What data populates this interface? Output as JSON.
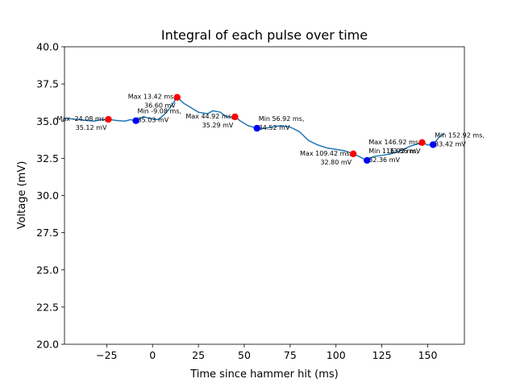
{
  "chart_data": {
    "type": "line",
    "title": "Integral of each pulse over time",
    "xlabel": "Time since hammer hit (ms)",
    "ylabel": "Voltage (mV)",
    "xlim": [
      -48,
      170
    ],
    "ylim": [
      20.0,
      40.0
    ],
    "xticks": [
      -25,
      0,
      25,
      50,
      75,
      100,
      125,
      150
    ],
    "yticks": [
      20.0,
      22.5,
      25.0,
      27.5,
      30.0,
      32.5,
      35.0,
      37.5,
      40.0
    ],
    "grid": false,
    "colors": {
      "line": "#1f77b4",
      "max": "#ff0000",
      "min": "#0000ff"
    },
    "series": [
      {
        "x": [
          -48,
          -40,
          -32,
          -28,
          -24.08,
          -20,
          -15,
          -12,
          -9.08,
          -5,
          -2,
          0,
          3,
          6,
          9,
          13.42,
          17,
          21,
          25,
          30,
          33,
          37,
          40,
          44.92,
          48,
          52,
          56.92,
          60,
          65,
          70,
          75,
          80,
          85,
          90,
          95,
          100,
          105,
          109.42,
          113,
          116.92,
          120,
          125,
          130,
          135,
          140,
          146.92,
          150,
          152.92,
          156,
          159
        ],
        "y": [
          35.2,
          35.1,
          35.0,
          35.1,
          35.12,
          35.05,
          35.0,
          35.1,
          35.03,
          35.3,
          35.2,
          35.15,
          35.1,
          35.4,
          35.8,
          36.6,
          36.2,
          35.9,
          35.6,
          35.5,
          35.7,
          35.6,
          35.3,
          35.29,
          35.0,
          34.7,
          34.52,
          34.5,
          34.6,
          34.7,
          34.6,
          34.3,
          33.7,
          33.4,
          33.2,
          33.1,
          33.0,
          32.8,
          32.6,
          32.36,
          32.6,
          32.7,
          32.8,
          33.0,
          33.3,
          33.56,
          33.4,
          33.42,
          33.9,
          34.2
        ]
      }
    ],
    "extrema": [
      {
        "kind": "max",
        "x": -24.08,
        "y": 35.12,
        "label": "Max -24.08 ms,\n35.12 mV"
      },
      {
        "kind": "min",
        "x": -9.08,
        "y": 35.03,
        "label": "Min -9.08 ms,\n35.03 mV"
      },
      {
        "kind": "max",
        "x": 13.42,
        "y": 36.6,
        "label": "Max 13.42 ms,\n36.60 mV"
      },
      {
        "kind": "max",
        "x": 44.92,
        "y": 35.29,
        "label": "Max 44.92 ms,\n35.29 mV"
      },
      {
        "kind": "min",
        "x": 56.92,
        "y": 34.52,
        "label": "Min 56.92 ms,\n34.52 mV"
      },
      {
        "kind": "max",
        "x": 109.42,
        "y": 32.8,
        "label": "Max 109.42 ms,\n32.80 mV"
      },
      {
        "kind": "min",
        "x": 116.92,
        "y": 32.36,
        "label": "Min 116.92 ms,\n32.36 mV"
      },
      {
        "kind": "max",
        "x": 146.92,
        "y": 33.56,
        "label": "Max 146.92 ms,\n33.56 mV"
      },
      {
        "kind": "min",
        "x": 152.92,
        "y": 33.42,
        "label": "Min 152.92 ms,\n33.42 mV"
      }
    ]
  }
}
